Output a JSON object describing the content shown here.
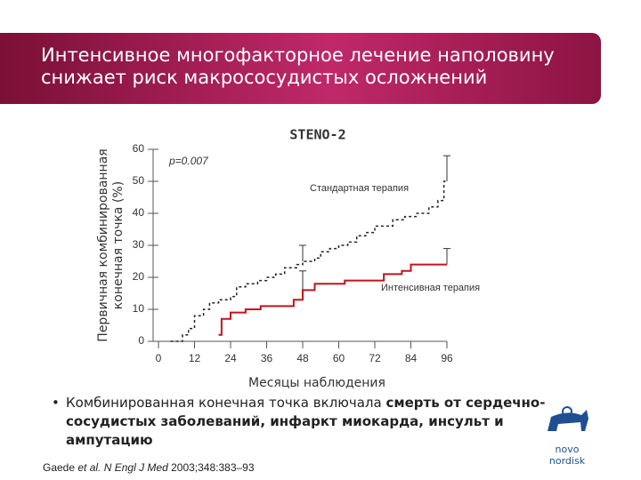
{
  "slide": {
    "title_lines": [
      "Интенсивное многофакторное лечение наполовину",
      "снижает риск макрососудистых осложнений"
    ],
    "bullet": [
      {
        "text": "Комбинированная конечная точка включала ",
        "bold": false
      },
      {
        "text": "смерть от сердечно-сосудистых заболеваний, инфаркт миокарда, инсульт и ампутацию",
        "bold": true
      }
    ],
    "citation": [
      {
        "text": "Gaede ",
        "italic": false
      },
      {
        "text": "et al. N Engl J Med",
        "italic": true
      },
      {
        "text": " 2003;348:383–93",
        "italic": false
      }
    ],
    "logo": "novo nordisk"
  },
  "chart_data": {
    "type": "step",
    "title": "STENO-2",
    "annotation": "p=0.007",
    "x_label": "Месяцы наблюдения",
    "y_label_lines": [
      "Первичная комбинированная",
      "конечная точка (%)"
    ],
    "xlim": [
      0,
      96
    ],
    "xticks": [
      0,
      12,
      24,
      36,
      48,
      60,
      72,
      84,
      96
    ],
    "ylim": [
      0,
      60
    ],
    "yticks": [
      0,
      10,
      20,
      30,
      40,
      50,
      60
    ],
    "series": [
      {
        "name": "Стандартная терапия",
        "color": "#222222",
        "dashed": true,
        "x": [
          4,
          8,
          10,
          12,
          15,
          17,
          20,
          24,
          26,
          29,
          33,
          36,
          39,
          42,
          46,
          48,
          52,
          54,
          57,
          60,
          63,
          66,
          69,
          72,
          78,
          82,
          86,
          90,
          93,
          95,
          96
        ],
        "values": [
          0,
          2,
          4,
          8,
          10,
          12,
          13,
          14,
          17,
          18,
          19,
          20,
          21,
          23,
          24,
          25,
          26,
          28,
          29,
          30,
          31,
          33,
          34,
          36,
          38,
          39,
          40,
          42,
          44,
          50,
          50
        ],
        "error_bars": [
          {
            "x": 48,
            "low": 25,
            "high": 30
          },
          {
            "x": 96,
            "low": 50,
            "high": 58
          }
        ]
      },
      {
        "name": "Интенсивная терапия",
        "color": "#c0141e",
        "dashed": false,
        "x": [
          20,
          21,
          24,
          29,
          34,
          45,
          48,
          52,
          62,
          75,
          81,
          84,
          96
        ],
        "values": [
          2,
          7,
          9,
          10,
          11,
          13,
          16,
          18,
          19,
          21,
          22,
          24,
          24
        ],
        "error_bars": [
          {
            "x": 48,
            "low": 16,
            "high": 22
          },
          {
            "x": 96,
            "low": 24,
            "high": 29
          }
        ]
      }
    ]
  }
}
